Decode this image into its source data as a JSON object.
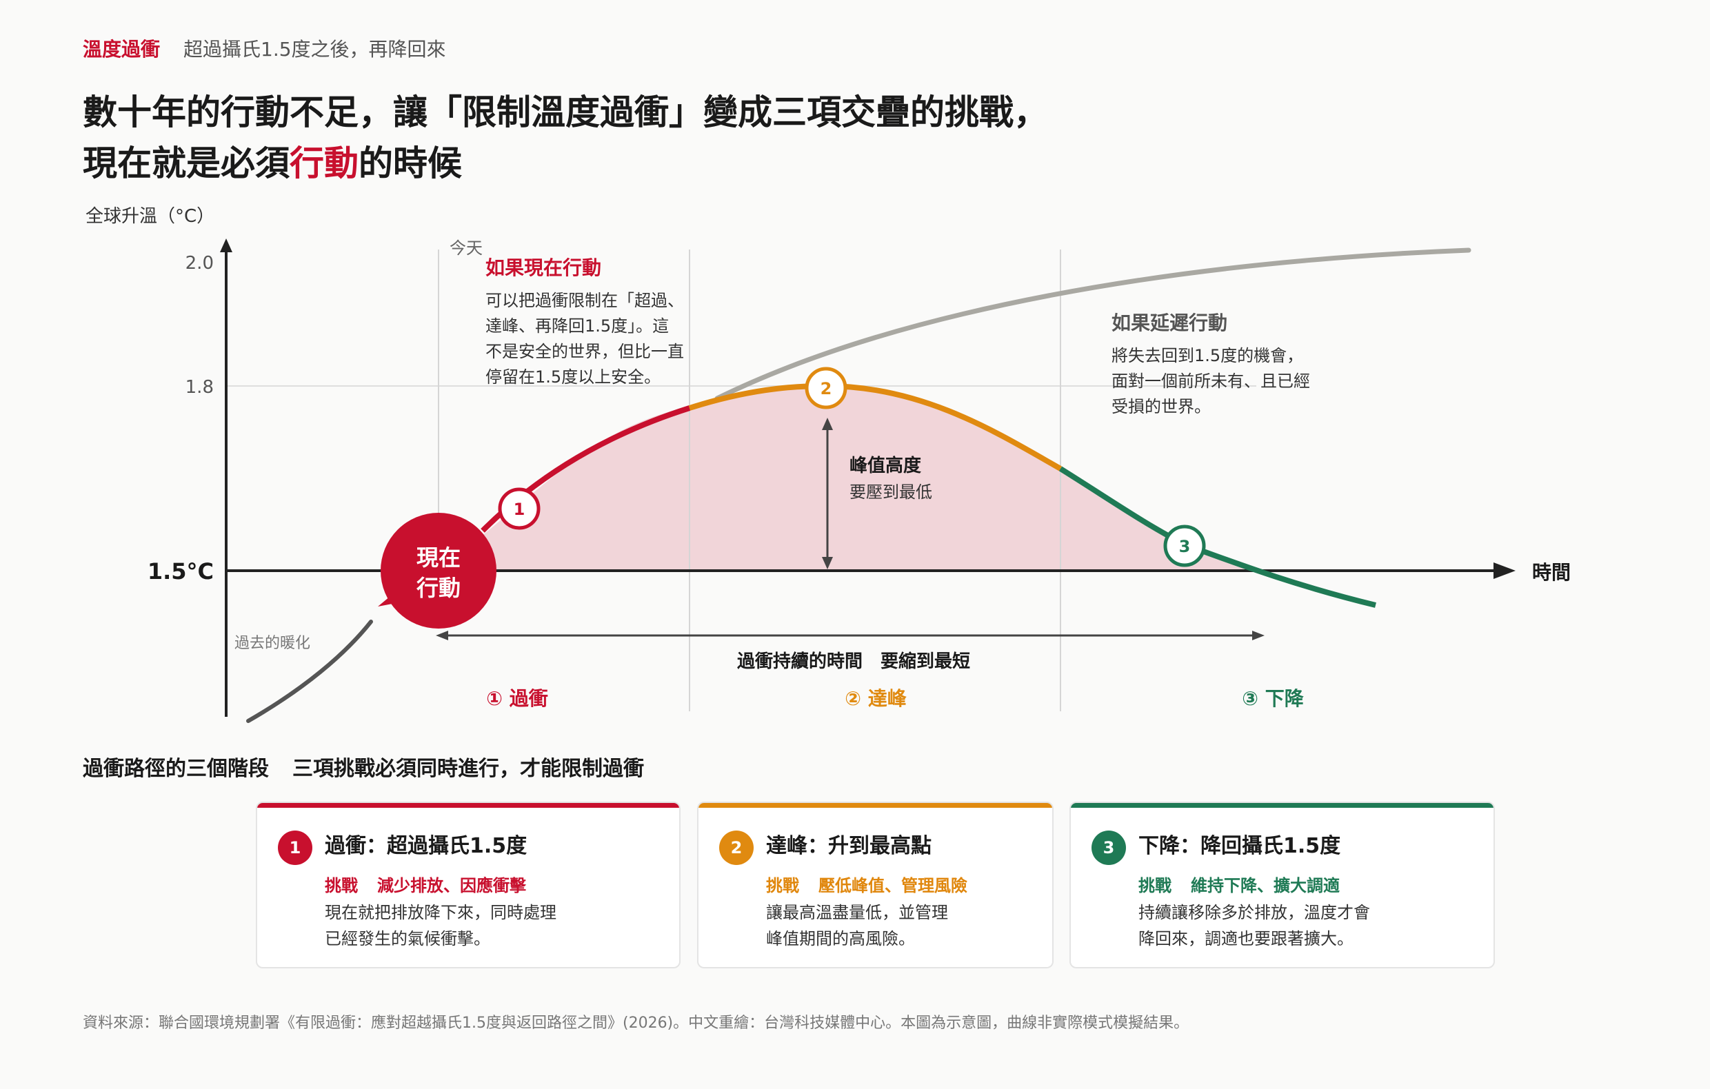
{
  "header": {
    "tag": "溫度過衝",
    "subtitle": "超過攝氏1.5度之後，再降回來",
    "headline_line1": "數十年的行動不足，讓「限制溫度過衝」變成三項交疊的挑戰，",
    "headline_line2_pre": "現在就是必須",
    "headline_line2_accent": "行動",
    "headline_line2_post": "的時候"
  },
  "diagram": {
    "y_axis_label": "全球升溫（°C）",
    "y_ticks": [
      "2.0",
      "1.8"
    ],
    "baseline_label": "1.5°C",
    "x_axis_label": "時間",
    "today_label": "今天",
    "past_label": "過去的暖化",
    "act_now_line1": "現在",
    "act_now_line2": "行動",
    "now_title": "如果現在行動",
    "now_text": [
      "可以把過衝限制在「超過、",
      "達峰、再降回1.5度」。這",
      "不是安全的世界，但比一直",
      "停留在1.5度以上安全。"
    ],
    "delay_title": "如果延遲行動",
    "delay_text": [
      "將失去回到1.5度的機會，",
      "面對一個前所未有、且已經",
      "受損的世界。"
    ],
    "peak_title": "峰值高度",
    "peak_text": "要壓到最低",
    "duration_label": "過衝持續的時間　要縮到最短",
    "markers": [
      "1",
      "2",
      "3"
    ],
    "phases": [
      "① 過衝",
      "② 達峰",
      "③ 下降"
    ],
    "colors": {
      "overshoot": "#c8102e",
      "peak": "#e08a10",
      "decline": "#1f7a55",
      "delay": "#a9a8a2",
      "fill": "#f1d5d9"
    }
  },
  "stages": {
    "title": "過衝路徑的三個階段",
    "subtitle": "三項挑戰必須同時進行，才能限制過衝",
    "cards": [
      {
        "num": "1",
        "title": "過衝：超過攝氏1.5度",
        "challenge_label": "挑戰",
        "challenge": "減少排放、因應衝擊",
        "desc_line1": "現在就把排放降下來，同時處理",
        "desc_line2": "已經發生的氣候衝擊。"
      },
      {
        "num": "2",
        "title": "達峰：升到最高點",
        "challenge_label": "挑戰",
        "challenge": "壓低峰值、管理風險",
        "desc_line1": "讓最高溫盡量低，並管理",
        "desc_line2": "峰值期間的高風險。"
      },
      {
        "num": "3",
        "title": "下降：降回攝氏1.5度",
        "challenge_label": "挑戰",
        "challenge": "維持下降、擴大調適",
        "desc_line1": "持續讓移除多於排放，溫度才會",
        "desc_line2": "降回來，調適也要跟著擴大。"
      }
    ]
  },
  "source": "資料來源：聯合國環境規劃署《有限過衝：應對超越攝氏1.5度與返回路徑之間》(2026)。中文重繪：台灣科技媒體中心。本圖為示意圖，曲線非實際模式模擬結果。"
}
